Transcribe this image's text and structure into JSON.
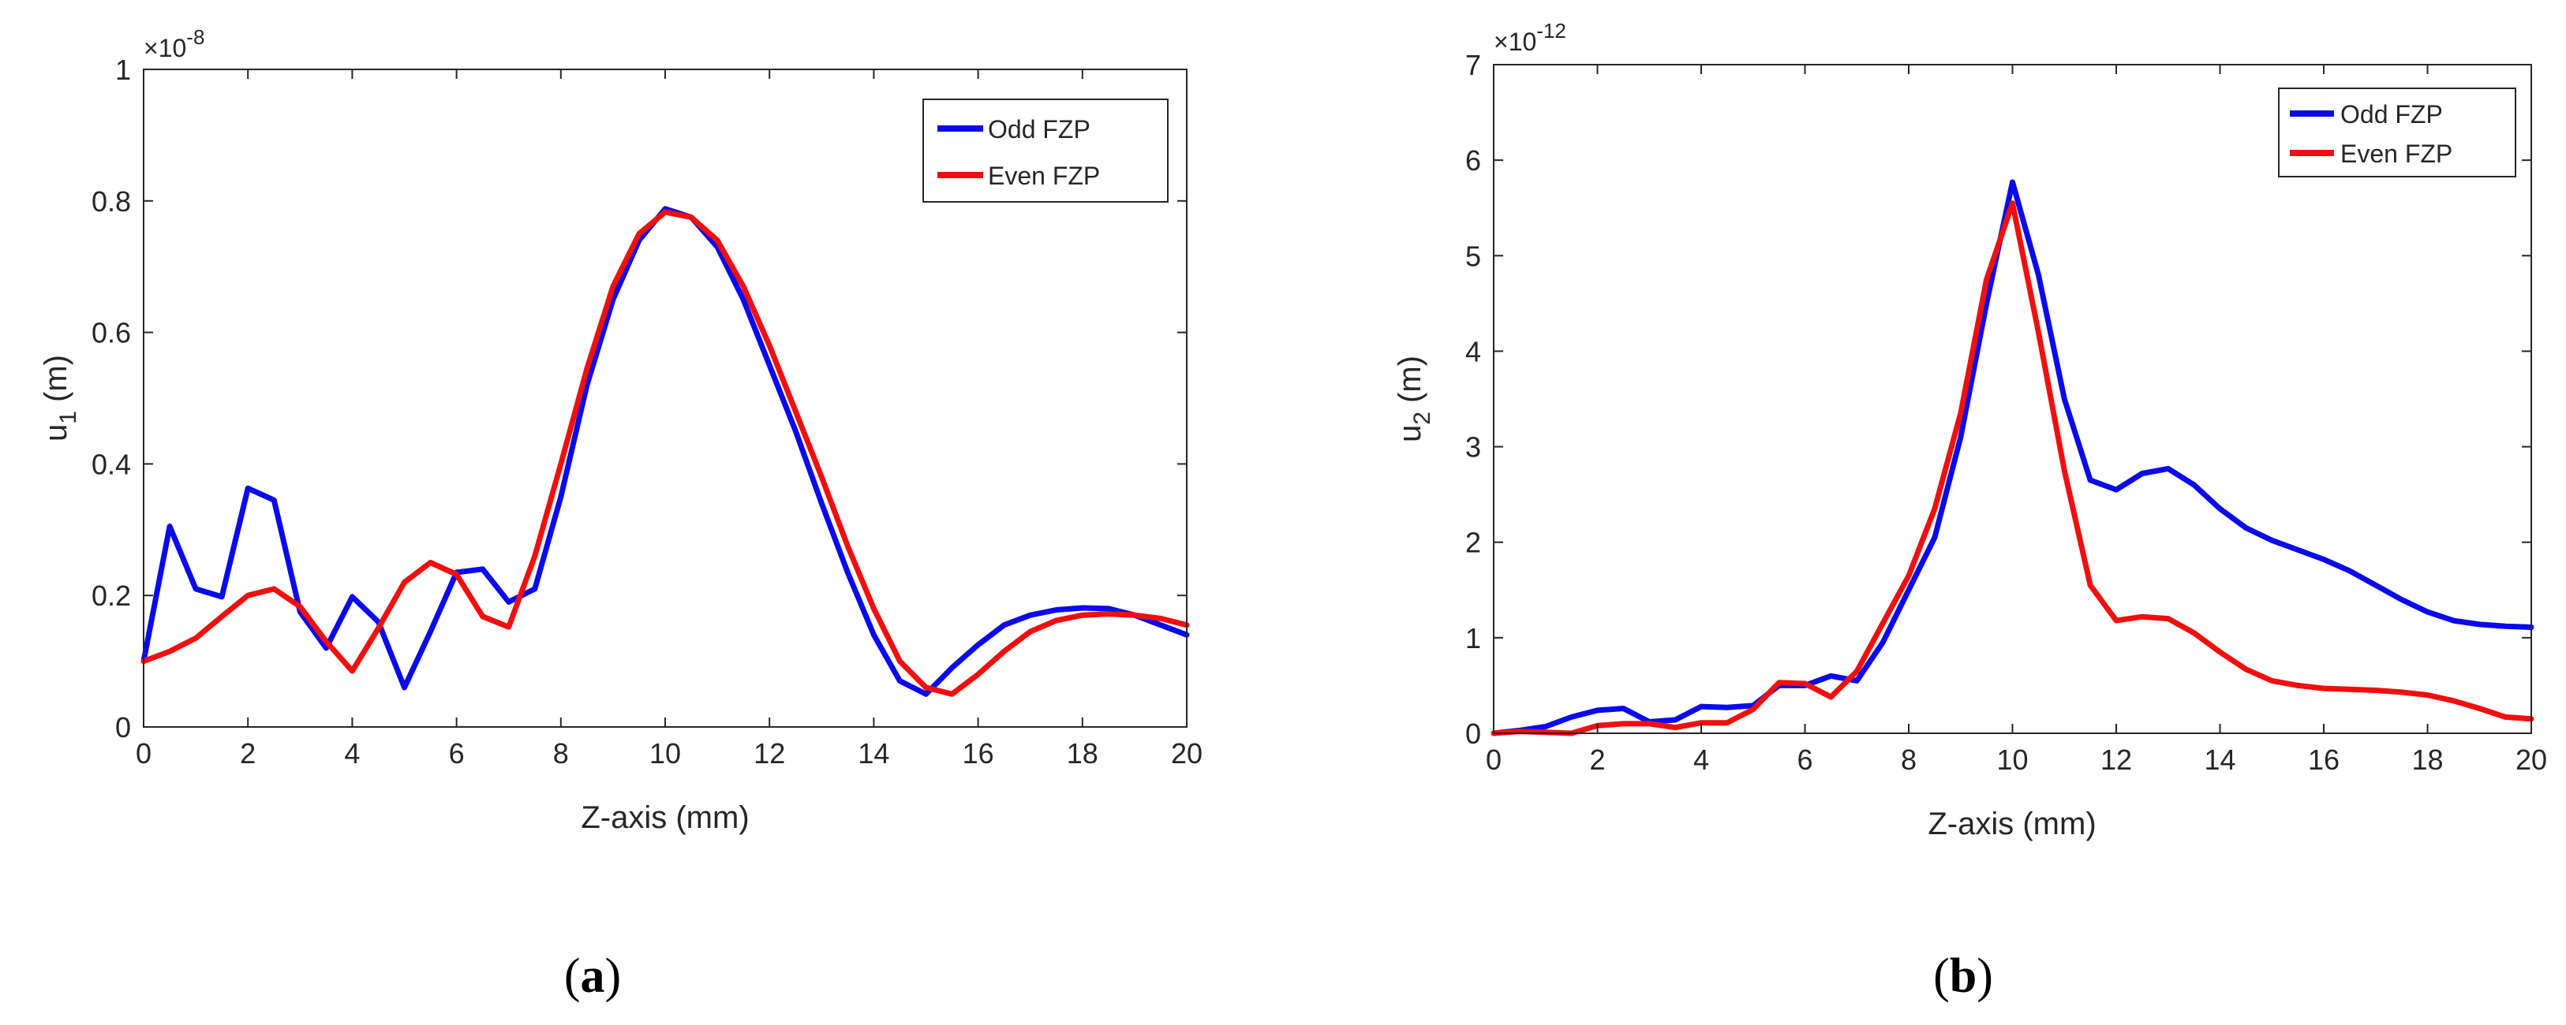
{
  "chart_data": [
    {
      "type": "line",
      "panel_label": "a",
      "xlabel": "Z-axis (mm)",
      "ylabel": "u",
      "ylabel_sub": "1",
      "ylabel_unit": "(m)",
      "y_exponent": "-8",
      "xlim": [
        0,
        20
      ],
      "ylim": [
        0,
        1
      ],
      "xticks": [
        0,
        2,
        4,
        6,
        8,
        10,
        12,
        14,
        16,
        18,
        20
      ],
      "xtick_labels": [
        "0",
        "2",
        "4",
        "6",
        "8",
        "10",
        "12",
        "14",
        "16",
        "18",
        "20"
      ],
      "yticks": [
        0,
        0.2,
        0.4,
        0.6,
        0.8,
        1
      ],
      "ytick_labels": [
        "0",
        "0.2",
        "0.4",
        "0.6",
        "0.8",
        "1"
      ],
      "legend_position": "top-right",
      "series": [
        {
          "name": "Odd FZP",
          "color": "#0a0aeb",
          "x": [
            0,
            0.5,
            1,
            1.5,
            2,
            2.5,
            3,
            3.5,
            4,
            4.5,
            5,
            5.5,
            6,
            6.5,
            7,
            7.5,
            8,
            8.5,
            9,
            9.5,
            10,
            10.5,
            11,
            11.5,
            12,
            12.5,
            13,
            13.5,
            14,
            14.5,
            15,
            15.5,
            16,
            16.5,
            17,
            17.5,
            18,
            18.5,
            19,
            19.5,
            20
          ],
          "values": [
            0.1,
            0.305,
            0.21,
            0.198,
            0.363,
            0.345,
            0.175,
            0.12,
            0.198,
            0.16,
            0.06,
            0.145,
            0.235,
            0.24,
            0.19,
            0.21,
            0.35,
            0.52,
            0.65,
            0.74,
            0.788,
            0.775,
            0.73,
            0.65,
            0.55,
            0.45,
            0.34,
            0.235,
            0.14,
            0.07,
            0.05,
            0.09,
            0.125,
            0.155,
            0.17,
            0.178,
            0.181,
            0.18,
            0.17,
            0.155,
            0.14
          ]
        },
        {
          "name": "Even FZP",
          "color": "#f00f0f",
          "x": [
            0,
            0.5,
            1,
            1.5,
            2,
            2.5,
            3,
            3.5,
            4,
            4.5,
            5,
            5.5,
            6,
            6.5,
            7,
            7.5,
            8,
            8.5,
            9,
            9.5,
            10,
            10.5,
            11,
            11.5,
            12,
            12.5,
            13,
            13.5,
            14,
            14.5,
            15,
            15.5,
            16,
            16.5,
            17,
            17.5,
            18,
            18.5,
            19,
            19.5,
            20
          ],
          "values": [
            0.1,
            0.115,
            0.135,
            0.168,
            0.2,
            0.21,
            0.183,
            0.13,
            0.085,
            0.15,
            0.22,
            0.25,
            0.232,
            0.168,
            0.152,
            0.26,
            0.4,
            0.545,
            0.67,
            0.75,
            0.783,
            0.775,
            0.74,
            0.67,
            0.58,
            0.48,
            0.38,
            0.275,
            0.18,
            0.1,
            0.06,
            0.05,
            0.08,
            0.115,
            0.145,
            0.162,
            0.17,
            0.172,
            0.17,
            0.165,
            0.155
          ]
        }
      ]
    },
    {
      "type": "line",
      "panel_label": "b",
      "xlabel": "Z-axis (mm)",
      "ylabel": "u",
      "ylabel_sub": "2",
      "ylabel_unit": "(m)",
      "y_exponent": "-12",
      "xlim": [
        0,
        20
      ],
      "ylim": [
        0,
        7
      ],
      "xticks": [
        0,
        2,
        4,
        6,
        8,
        10,
        12,
        14,
        16,
        18,
        20
      ],
      "xtick_labels": [
        "0",
        "2",
        "4",
        "6",
        "8",
        "10",
        "12",
        "14",
        "16",
        "18",
        "20"
      ],
      "yticks": [
        0,
        1,
        2,
        3,
        4,
        5,
        6,
        7
      ],
      "ytick_labels": [
        "0",
        "1",
        "2",
        "3",
        "4",
        "5",
        "6",
        "7"
      ],
      "legend_position": "top-right",
      "series": [
        {
          "name": "Odd FZP",
          "color": "#0a0aeb",
          "x": [
            0,
            0.5,
            1,
            1.5,
            2,
            2.5,
            3,
            3.5,
            4,
            4.5,
            5,
            5.5,
            6,
            6.5,
            7,
            7.5,
            8,
            8.5,
            9,
            9.5,
            10,
            10.5,
            11,
            11.5,
            12,
            12.5,
            13,
            13.5,
            14,
            14.5,
            15,
            15.5,
            16,
            16.5,
            17,
            17.5,
            18,
            18.5,
            19,
            19.5,
            20
          ],
          "values": [
            0.0,
            0.03,
            0.07,
            0.17,
            0.24,
            0.26,
            0.12,
            0.14,
            0.28,
            0.27,
            0.29,
            0.5,
            0.5,
            0.6,
            0.55,
            0.95,
            1.5,
            2.05,
            3.1,
            4.5,
            5.77,
            4.8,
            3.5,
            2.65,
            2.55,
            2.72,
            2.77,
            2.6,
            2.35,
            2.15,
            2.02,
            1.92,
            1.82,
            1.7,
            1.55,
            1.4,
            1.27,
            1.18,
            1.14,
            1.12,
            1.11
          ]
        },
        {
          "name": "Even FZP",
          "color": "#f00f0f",
          "x": [
            0,
            0.5,
            1,
            1.5,
            2,
            2.5,
            3,
            3.5,
            4,
            4.5,
            5,
            5.5,
            6,
            6.5,
            7,
            7.5,
            8,
            8.5,
            9,
            9.5,
            10,
            10.5,
            11,
            11.5,
            12,
            12.5,
            13,
            13.5,
            14,
            14.5,
            15,
            15.5,
            16,
            16.5,
            17,
            17.5,
            18,
            18.5,
            19,
            19.5,
            20
          ],
          "values": [
            0.0,
            0.02,
            0.01,
            0.0,
            0.08,
            0.1,
            0.1,
            0.06,
            0.11,
            0.11,
            0.25,
            0.53,
            0.52,
            0.38,
            0.65,
            1.15,
            1.65,
            2.35,
            3.35,
            4.75,
            5.55,
            4.2,
            2.75,
            1.55,
            1.18,
            1.22,
            1.2,
            1.05,
            0.85,
            0.67,
            0.55,
            0.5,
            0.47,
            0.46,
            0.45,
            0.43,
            0.4,
            0.34,
            0.26,
            0.17,
            0.15
          ]
        }
      ]
    }
  ]
}
